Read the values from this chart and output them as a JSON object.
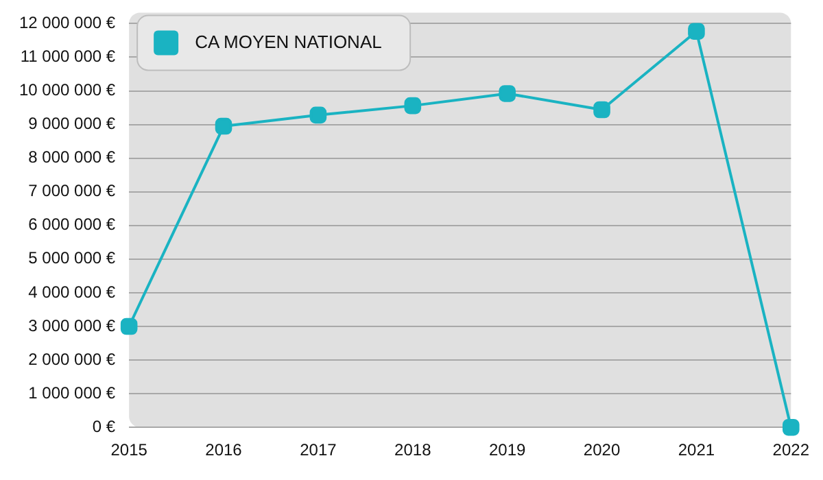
{
  "chart_data": {
    "type": "line",
    "categories": [
      "2015",
      "2016",
      "2017",
      "2018",
      "2019",
      "2020",
      "2021",
      "2022"
    ],
    "series": [
      {
        "name": "CA MOYEN NATIONAL",
        "color": "#1ab3c2",
        "values": [
          3000000,
          8950000,
          9280000,
          9560000,
          9920000,
          9440000,
          11770000,
          0
        ]
      }
    ],
    "ylim": [
      0,
      12000000
    ],
    "yticks": [
      {
        "value": 0,
        "label": "0 €"
      },
      {
        "value": 1000000,
        "label": "1 000 000 €"
      },
      {
        "value": 2000000,
        "label": "2 000 000 €"
      },
      {
        "value": 3000000,
        "label": "3 000 000 €"
      },
      {
        "value": 4000000,
        "label": "4 000 000 €"
      },
      {
        "value": 5000000,
        "label": "5 000 000 €"
      },
      {
        "value": 6000000,
        "label": "6 000 000 €"
      },
      {
        "value": 7000000,
        "label": "7 000 000 €"
      },
      {
        "value": 8000000,
        "label": "8 000 000 €"
      },
      {
        "value": 9000000,
        "label": "9 000 000 €"
      },
      {
        "value": 10000000,
        "label": "10 000 000 €"
      },
      {
        "value": 11000000,
        "label": "11 000 000 €"
      },
      {
        "value": 12000000,
        "label": "12 000 000 €"
      }
    ],
    "grid": "y",
    "legend": "top left",
    "marker": "square",
    "line_style": "solid"
  }
}
